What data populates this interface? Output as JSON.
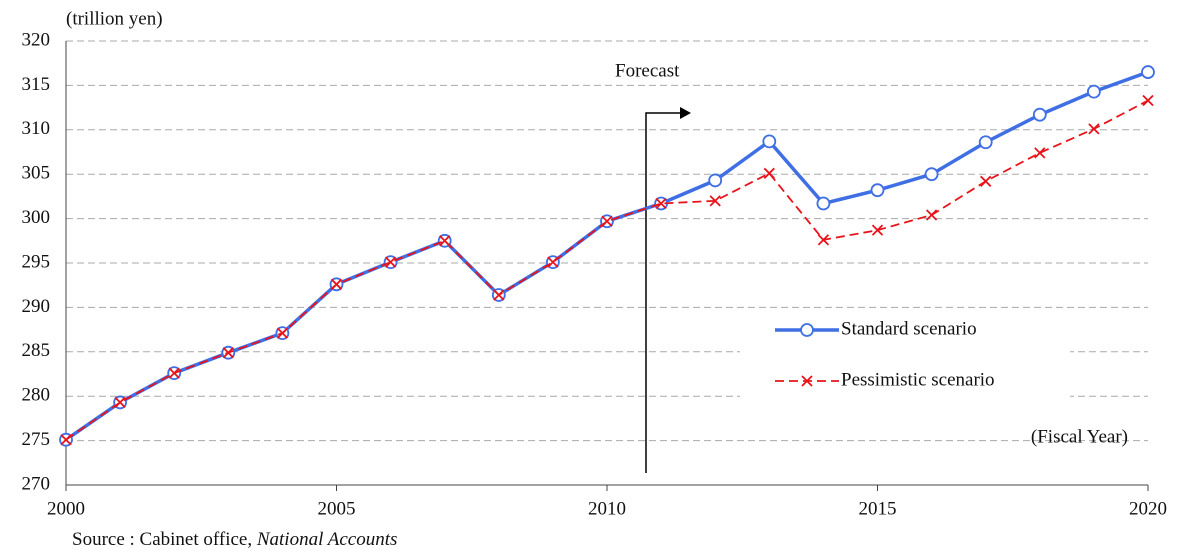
{
  "chart_data": {
    "type": "line",
    "y_label": "(trillion yen)",
    "x_label": "(Fiscal Year)",
    "annotation": "Forecast",
    "source": "Source : Cabinet office, ",
    "source_italic": "National Accounts",
    "x": [
      2000,
      2001,
      2002,
      2003,
      2004,
      2005,
      2006,
      2007,
      2008,
      2009,
      2010,
      2011,
      2012,
      2013,
      2014,
      2015,
      2016,
      2017,
      2018,
      2019,
      2020
    ],
    "series": [
      {
        "name": "Standard scenario",
        "color": "#3f6fe4",
        "values": [
          275.1,
          279.3,
          282.6,
          284.9,
          287.1,
          292.6,
          295.1,
          297.5,
          291.4,
          295.1,
          299.7,
          301.7,
          304.3,
          308.7,
          301.7,
          303.2,
          305.0,
          308.6,
          311.7,
          314.3,
          316.5
        ]
      },
      {
        "name": "Pessimistic scenario",
        "color": "#e8141c",
        "values": [
          275.1,
          279.3,
          282.6,
          284.9,
          287.1,
          292.6,
          295.1,
          297.5,
          291.4,
          295.1,
          299.7,
          301.7,
          302.0,
          305.1,
          297.6,
          298.7,
          300.4,
          304.2,
          307.4,
          310.1,
          313.3
        ]
      }
    ],
    "xlim": [
      2000,
      2020
    ],
    "xticks": [
      2000,
      2005,
      2010,
      2015,
      2020
    ],
    "ylim": [
      270,
      320
    ],
    "yticks": [
      270,
      275,
      280,
      285,
      290,
      295,
      300,
      305,
      310,
      315,
      320
    ],
    "grid": true
  }
}
